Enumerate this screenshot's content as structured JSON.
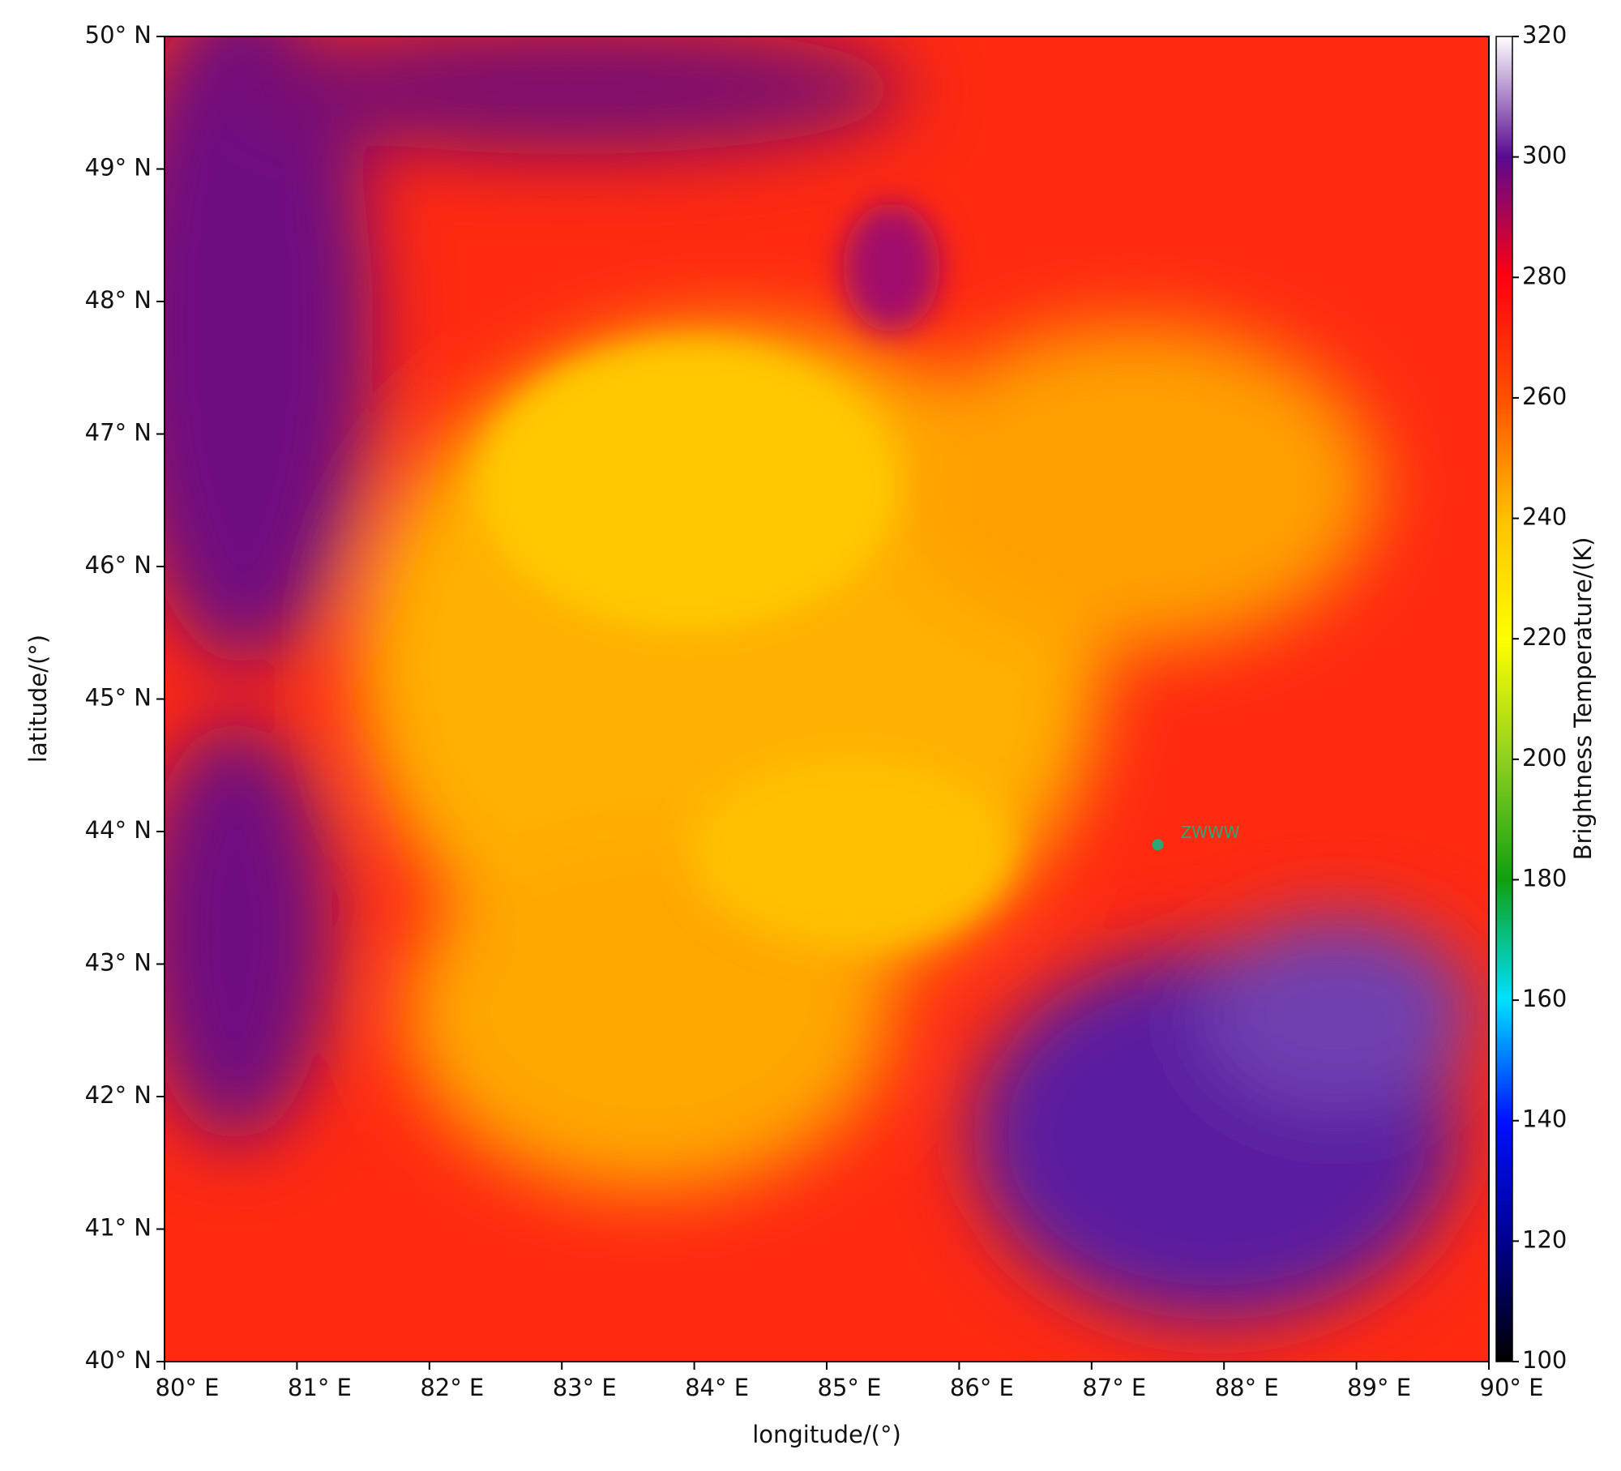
{
  "chart_data": {
    "type": "heatmap",
    "xlabel": "longitude/(°)",
    "ylabel": "latitude/(°)",
    "xlim": [
      80,
      90
    ],
    "ylim": [
      40,
      50
    ],
    "xticks": [
      {
        "value": 80,
        "label": "80° E"
      },
      {
        "value": 81,
        "label": "81° E"
      },
      {
        "value": 82,
        "label": "82° E"
      },
      {
        "value": 83,
        "label": "83° E"
      },
      {
        "value": 84,
        "label": "84° E"
      },
      {
        "value": 85,
        "label": "85° E"
      },
      {
        "value": 86,
        "label": "86° E"
      },
      {
        "value": 87,
        "label": "87° E"
      },
      {
        "value": 88,
        "label": "88° E"
      },
      {
        "value": 89,
        "label": "89° E"
      },
      {
        "value": 90,
        "label": "90° E"
      }
    ],
    "yticks": [
      {
        "value": 40,
        "label": "40° N"
      },
      {
        "value": 41,
        "label": "41° N"
      },
      {
        "value": 42,
        "label": "42° N"
      },
      {
        "value": 43,
        "label": "43° N"
      },
      {
        "value": 44,
        "label": "44° N"
      },
      {
        "value": 45,
        "label": "45° N"
      },
      {
        "value": 46,
        "label": "46° N"
      },
      {
        "value": 47,
        "label": "47° N"
      },
      {
        "value": 48,
        "label": "48° N"
      },
      {
        "value": 49,
        "label": "49° N"
      },
      {
        "value": 50,
        "label": "50° N"
      }
    ],
    "colorbar_label": "Brightness Temperature/(K)",
    "clim": [
      100,
      320
    ],
    "cticks": [
      100,
      120,
      140,
      160,
      180,
      200,
      220,
      240,
      260,
      280,
      300,
      320
    ],
    "colormap": [
      "#000000",
      "#000090",
      "#0010ff",
      "#00e0ff",
      "#10a010",
      "#90d020",
      "#ffff00",
      "#ffc000",
      "#ff5000",
      "#ff0010",
      "#5a0a90",
      "#ffffff"
    ],
    "station": {
      "name": "ZWWW",
      "lon": 87.5,
      "lat": 43.9,
      "color": "#2aa876"
    }
  }
}
